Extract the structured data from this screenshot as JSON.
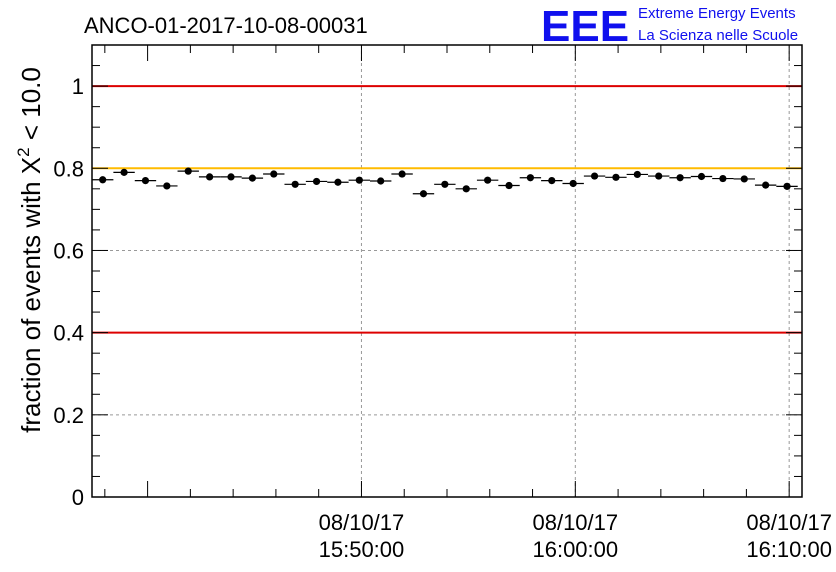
{
  "header": {
    "run_title": "ANCO-01-2017-10-08-00031",
    "logo_letters": "EEE",
    "logo_line1": "Extreme Energy Events",
    "logo_line2": "La Scienza nelle Scuole"
  },
  "colors": {
    "logo": "#1010ee",
    "threshold_low_high": "#dd0000",
    "reference_line": "#ffbb00",
    "grid": "#999999",
    "marker": "#000000"
  },
  "chart_data": {
    "type": "scatter",
    "title": "ANCO-01-2017-10-08-00031",
    "xlabel": "",
    "ylabel_prefix": "fraction of events with ",
    "ylabel_symbol": "X",
    "ylabel_sup": "2",
    "ylabel_suffix": " < 10.0",
    "xlim_minutes": [
      -12.6,
      20.6
    ],
    "ylim": [
      0,
      1.1
    ],
    "grid": true,
    "yticks": [
      {
        "value": 0,
        "label": "0"
      },
      {
        "value": 0.2,
        "label": "0.2"
      },
      {
        "value": 0.4,
        "label": "0.4"
      },
      {
        "value": 0.6,
        "label": "0.6"
      },
      {
        "value": 0.8,
        "label": "0.8"
      },
      {
        "value": 1,
        "label": "1"
      }
    ],
    "xticks": [
      {
        "minute": 0,
        "date": "08/10/17",
        "time": "15:50:00"
      },
      {
        "minute": 10,
        "date": "08/10/17",
        "time": "16:00:00"
      },
      {
        "minute": 20,
        "date": "08/10/17",
        "time": "16:10:00"
      }
    ],
    "hlines": [
      {
        "value": 1.0,
        "color": "#dd0000"
      },
      {
        "value": 0.8,
        "color": "#ffbb00"
      },
      {
        "value": 0.4,
        "color": "#dd0000"
      }
    ],
    "bin_width_minutes": 1.0,
    "x_minutes": [
      -12.1,
      -11.1,
      -10.1,
      -9.1,
      -8.1,
      -7.1,
      -6.1,
      -5.1,
      -4.1,
      -3.1,
      -2.1,
      -1.1,
      -0.1,
      0.9,
      1.9,
      2.9,
      3.9,
      4.9,
      5.9,
      6.9,
      7.9,
      8.9,
      9.9,
      10.9,
      11.9,
      12.9,
      13.9,
      14.9,
      15.9,
      16.9,
      17.9,
      18.9,
      19.9
    ],
    "values": [
      0.772,
      0.79,
      0.77,
      0.757,
      0.793,
      0.779,
      0.779,
      0.776,
      0.786,
      0.761,
      0.768,
      0.766,
      0.771,
      0.769,
      0.786,
      0.738,
      0.761,
      0.75,
      0.771,
      0.758,
      0.777,
      0.77,
      0.763,
      0.781,
      0.778,
      0.785,
      0.781,
      0.777,
      0.78,
      0.775,
      0.774,
      0.759,
      0.756
    ],
    "errors": [
      0.008,
      0.007,
      0.008,
      0.008,
      0.007,
      0.007,
      0.007,
      0.007,
      0.007,
      0.008,
      0.008,
      0.008,
      0.007,
      0.008,
      0.007,
      0.008,
      0.008,
      0.008,
      0.008,
      0.008,
      0.007,
      0.007,
      0.008,
      0.007,
      0.007,
      0.007,
      0.007,
      0.007,
      0.007,
      0.007,
      0.007,
      0.008,
      0.008
    ]
  }
}
